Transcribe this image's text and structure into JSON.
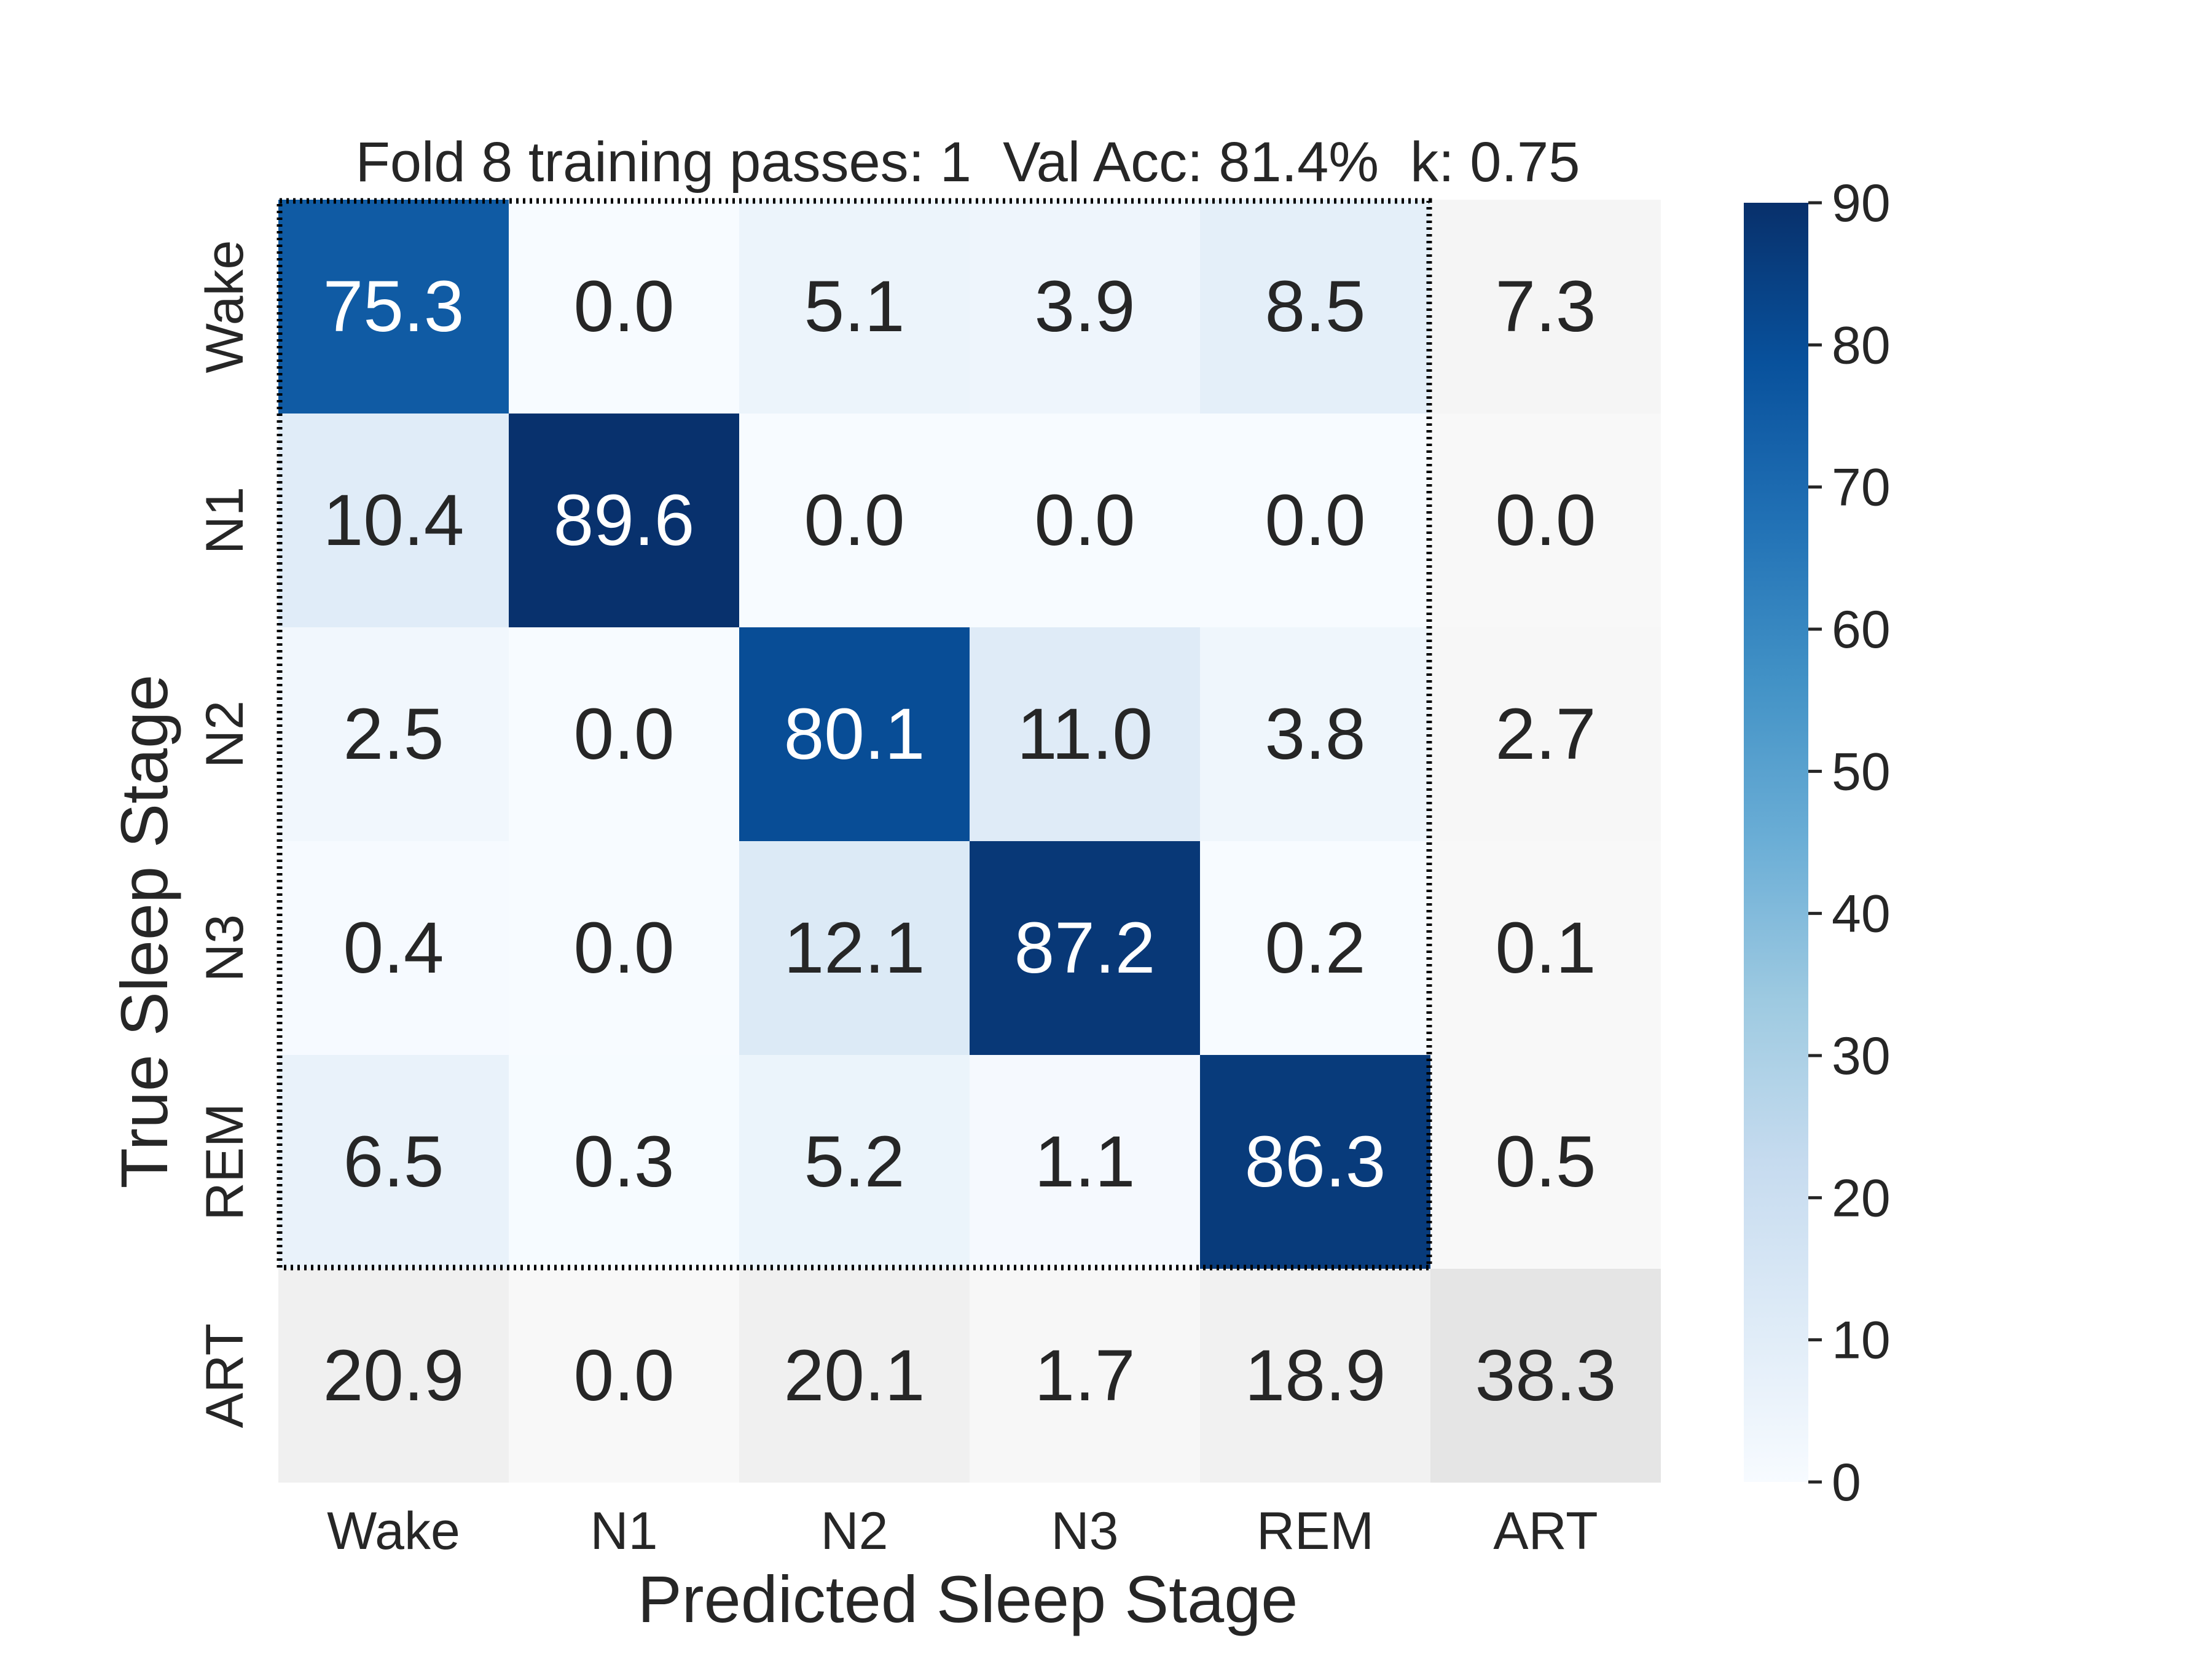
{
  "chart_data": {
    "type": "heatmap",
    "title": "Fold 8 training passes: 1  Val Acc: 81.4%  k: 0.75",
    "xlabel": "Predicted Sleep Stage",
    "ylabel": "True Sleep Stage",
    "x_categories": [
      "Wake",
      "N1",
      "N2",
      "N3",
      "REM",
      "ART"
    ],
    "y_categories": [
      "Wake",
      "N1",
      "N2",
      "N3",
      "REM",
      "ART"
    ],
    "values": [
      [
        75.3,
        0.0,
        5.1,
        3.9,
        8.5,
        7.3
      ],
      [
        10.4,
        89.6,
        0.0,
        0.0,
        0.0,
        0.0
      ],
      [
        2.5,
        0.0,
        80.1,
        11.0,
        3.8,
        2.7
      ],
      [
        0.4,
        0.0,
        12.1,
        87.2,
        0.2,
        0.1
      ],
      [
        6.5,
        0.3,
        5.2,
        1.1,
        86.3,
        0.5
      ],
      [
        20.9,
        0.0,
        20.1,
        1.7,
        18.9,
        38.3
      ]
    ],
    "value_format": "0.0",
    "colormap_main": "Blues",
    "colormap_artifact": "Greys",
    "artifact_category": "ART",
    "highlight_box": "Wake–REM rows × Wake–REM columns (dotted border)",
    "colorbar": {
      "range": [
        0,
        90
      ],
      "ticks": [
        0,
        10,
        20,
        30,
        40,
        50,
        60,
        70,
        80,
        90
      ]
    },
    "colors": {
      "blues_low": "#f7fbff",
      "blues_high": "#08306b",
      "greys_low": "#ffffff",
      "greys_high": "#000000",
      "text_dark": "#262626",
      "text_light": "#ffffff"
    }
  }
}
